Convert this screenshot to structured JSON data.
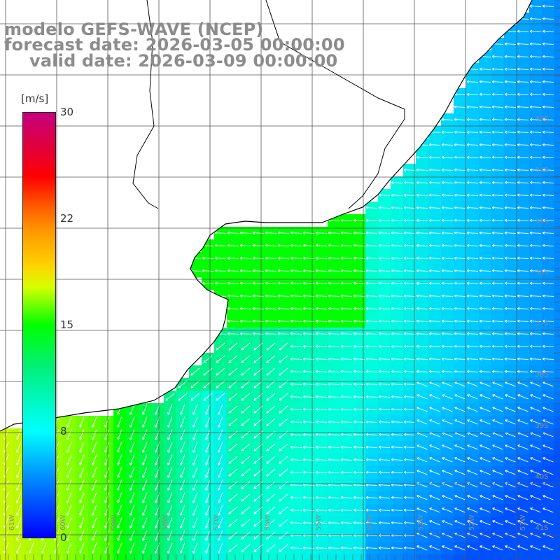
{
  "titles": {
    "model": "modelo GEFS-WAVE (NCEP)",
    "forecast": "forecast date: 2026-03-05 00:00:00",
    "valid": "valid date: 2026-03-09 00:00:00"
  },
  "colorbar": {
    "unit": "[m/s]",
    "ticks": [
      "30",
      "22",
      "15",
      "8",
      "0"
    ],
    "colors": [
      "#0000ff",
      "#0096ff",
      "#00ffff",
      "#00f07a",
      "#00ff00",
      "#d8ff00",
      "#ffd200",
      "#ff9a00",
      "#ff5a00",
      "#ff0000",
      "#e0003c",
      "#c8007e"
    ]
  },
  "latitude_labels": [
    "33S",
    "34S",
    "35S",
    "36S",
    "37S",
    "38S",
    "39S",
    "40S",
    "41S"
  ],
  "longitude_labels": [
    "61W",
    "60W",
    "59W",
    "58W",
    "57W",
    "56W",
    "55W",
    "54W",
    "53W",
    "52W",
    "51W"
  ],
  "colors": {
    "land": "#ffffff",
    "coast": "#000000",
    "grid": "#555555",
    "arrow": "#ffffff",
    "label": "#8c8c8c"
  }
}
